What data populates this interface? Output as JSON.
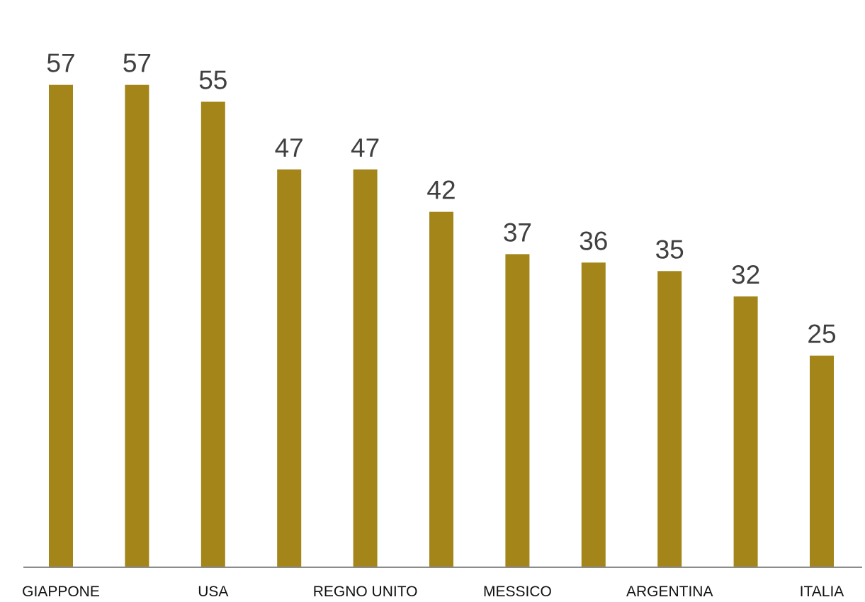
{
  "chart_data": {
    "type": "bar",
    "categories": [
      "GIAPPONE",
      "",
      "USA",
      "",
      "REGNO UNITO",
      "",
      "MESSICO",
      "",
      "ARGENTINA",
      "",
      "ITALIA"
    ],
    "values": [
      57,
      57,
      55,
      47,
      47,
      42,
      37,
      36,
      35,
      32,
      25
    ],
    "data_labels": [
      "57",
      "57",
      "55",
      "47",
      "47",
      "42",
      "37",
      "36",
      "35",
      "32",
      "25"
    ],
    "title": "",
    "xlabel": "",
    "ylabel": "",
    "ylim": [
      0,
      62
    ],
    "grid": false,
    "legend": "none",
    "bar_color": "#A3851A",
    "axis_color": "#8C8C8C"
  }
}
